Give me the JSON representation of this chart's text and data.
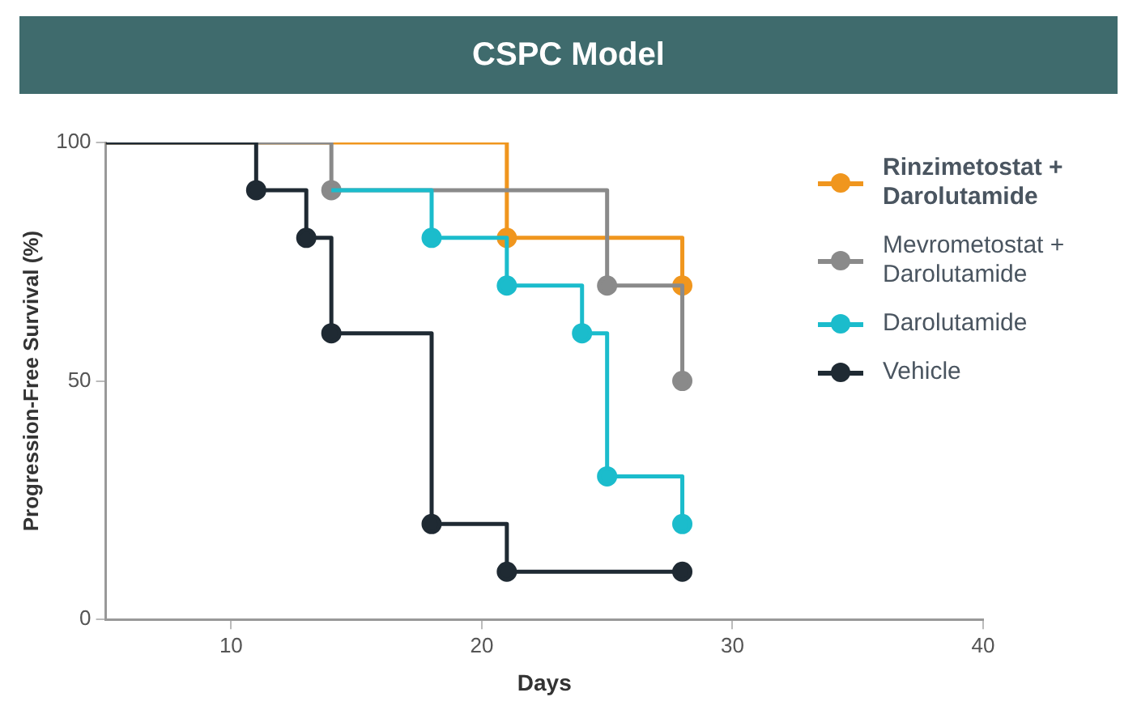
{
  "chart_data": {
    "type": "step",
    "title": "CSPC Model",
    "xlabel": "Days",
    "ylabel": "Progression-Free Survival (%)",
    "xlim": [
      5,
      40
    ],
    "xticks": [
      10,
      20,
      30,
      40
    ],
    "ylim": [
      0,
      100
    ],
    "yticks": [
      0,
      50,
      100
    ],
    "grid": false,
    "legend": "right",
    "marker": "circle",
    "line_style": "solid",
    "series": [
      {
        "name": "Rinzimetostat + Darolutamide",
        "color": "#f0961e",
        "x": [
          5,
          21,
          28
        ],
        "values": [
          100,
          80,
          70
        ]
      },
      {
        "name": "Mevrometostat + Darolutamide",
        "color": "#8a8a8a",
        "x": [
          5,
          14,
          25,
          28
        ],
        "values": [
          100,
          90,
          70,
          50
        ]
      },
      {
        "name": "Darolutamide",
        "color": "#1bbccc",
        "x": [
          14,
          18,
          21,
          24,
          25,
          28
        ],
        "values": [
          90,
          80,
          70,
          60,
          30,
          20
        ]
      },
      {
        "name": "Vehicle",
        "color": "#1f2a33",
        "x": [
          5,
          11,
          13,
          14,
          18,
          21,
          28
        ],
        "values": [
          100,
          90,
          80,
          60,
          20,
          10,
          10
        ]
      }
    ]
  }
}
